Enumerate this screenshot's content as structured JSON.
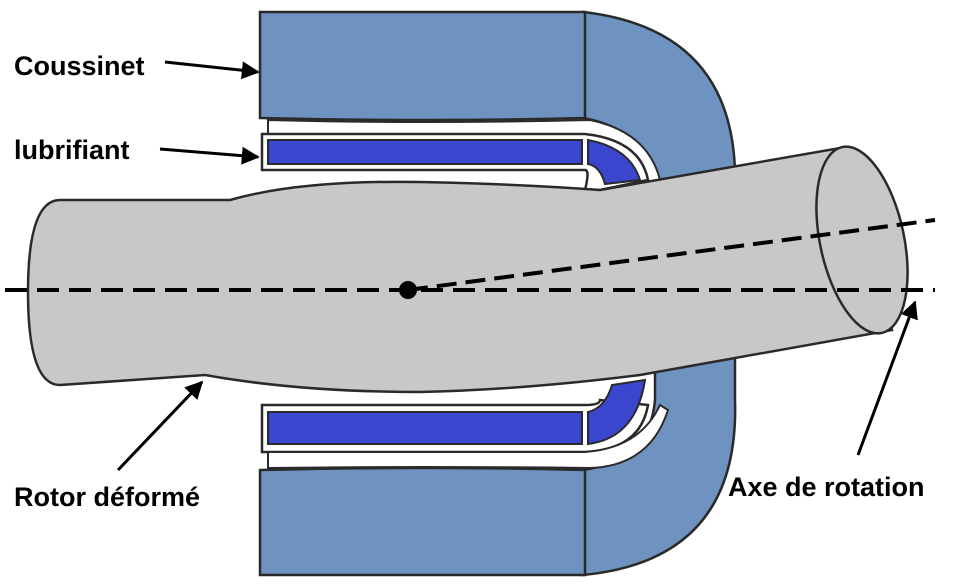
{
  "labels": {
    "bearing": "Coussinet",
    "lubricant": "lubrifiant",
    "rotor": "Rotor déformé",
    "axis": "Axe de rotation"
  },
  "colors": {
    "bearing": "#6f93c0",
    "lubricant": "#3b46cf",
    "rotor": "#c8c8c8",
    "outline": "#2a2a2a",
    "film": "#ffffff"
  }
}
